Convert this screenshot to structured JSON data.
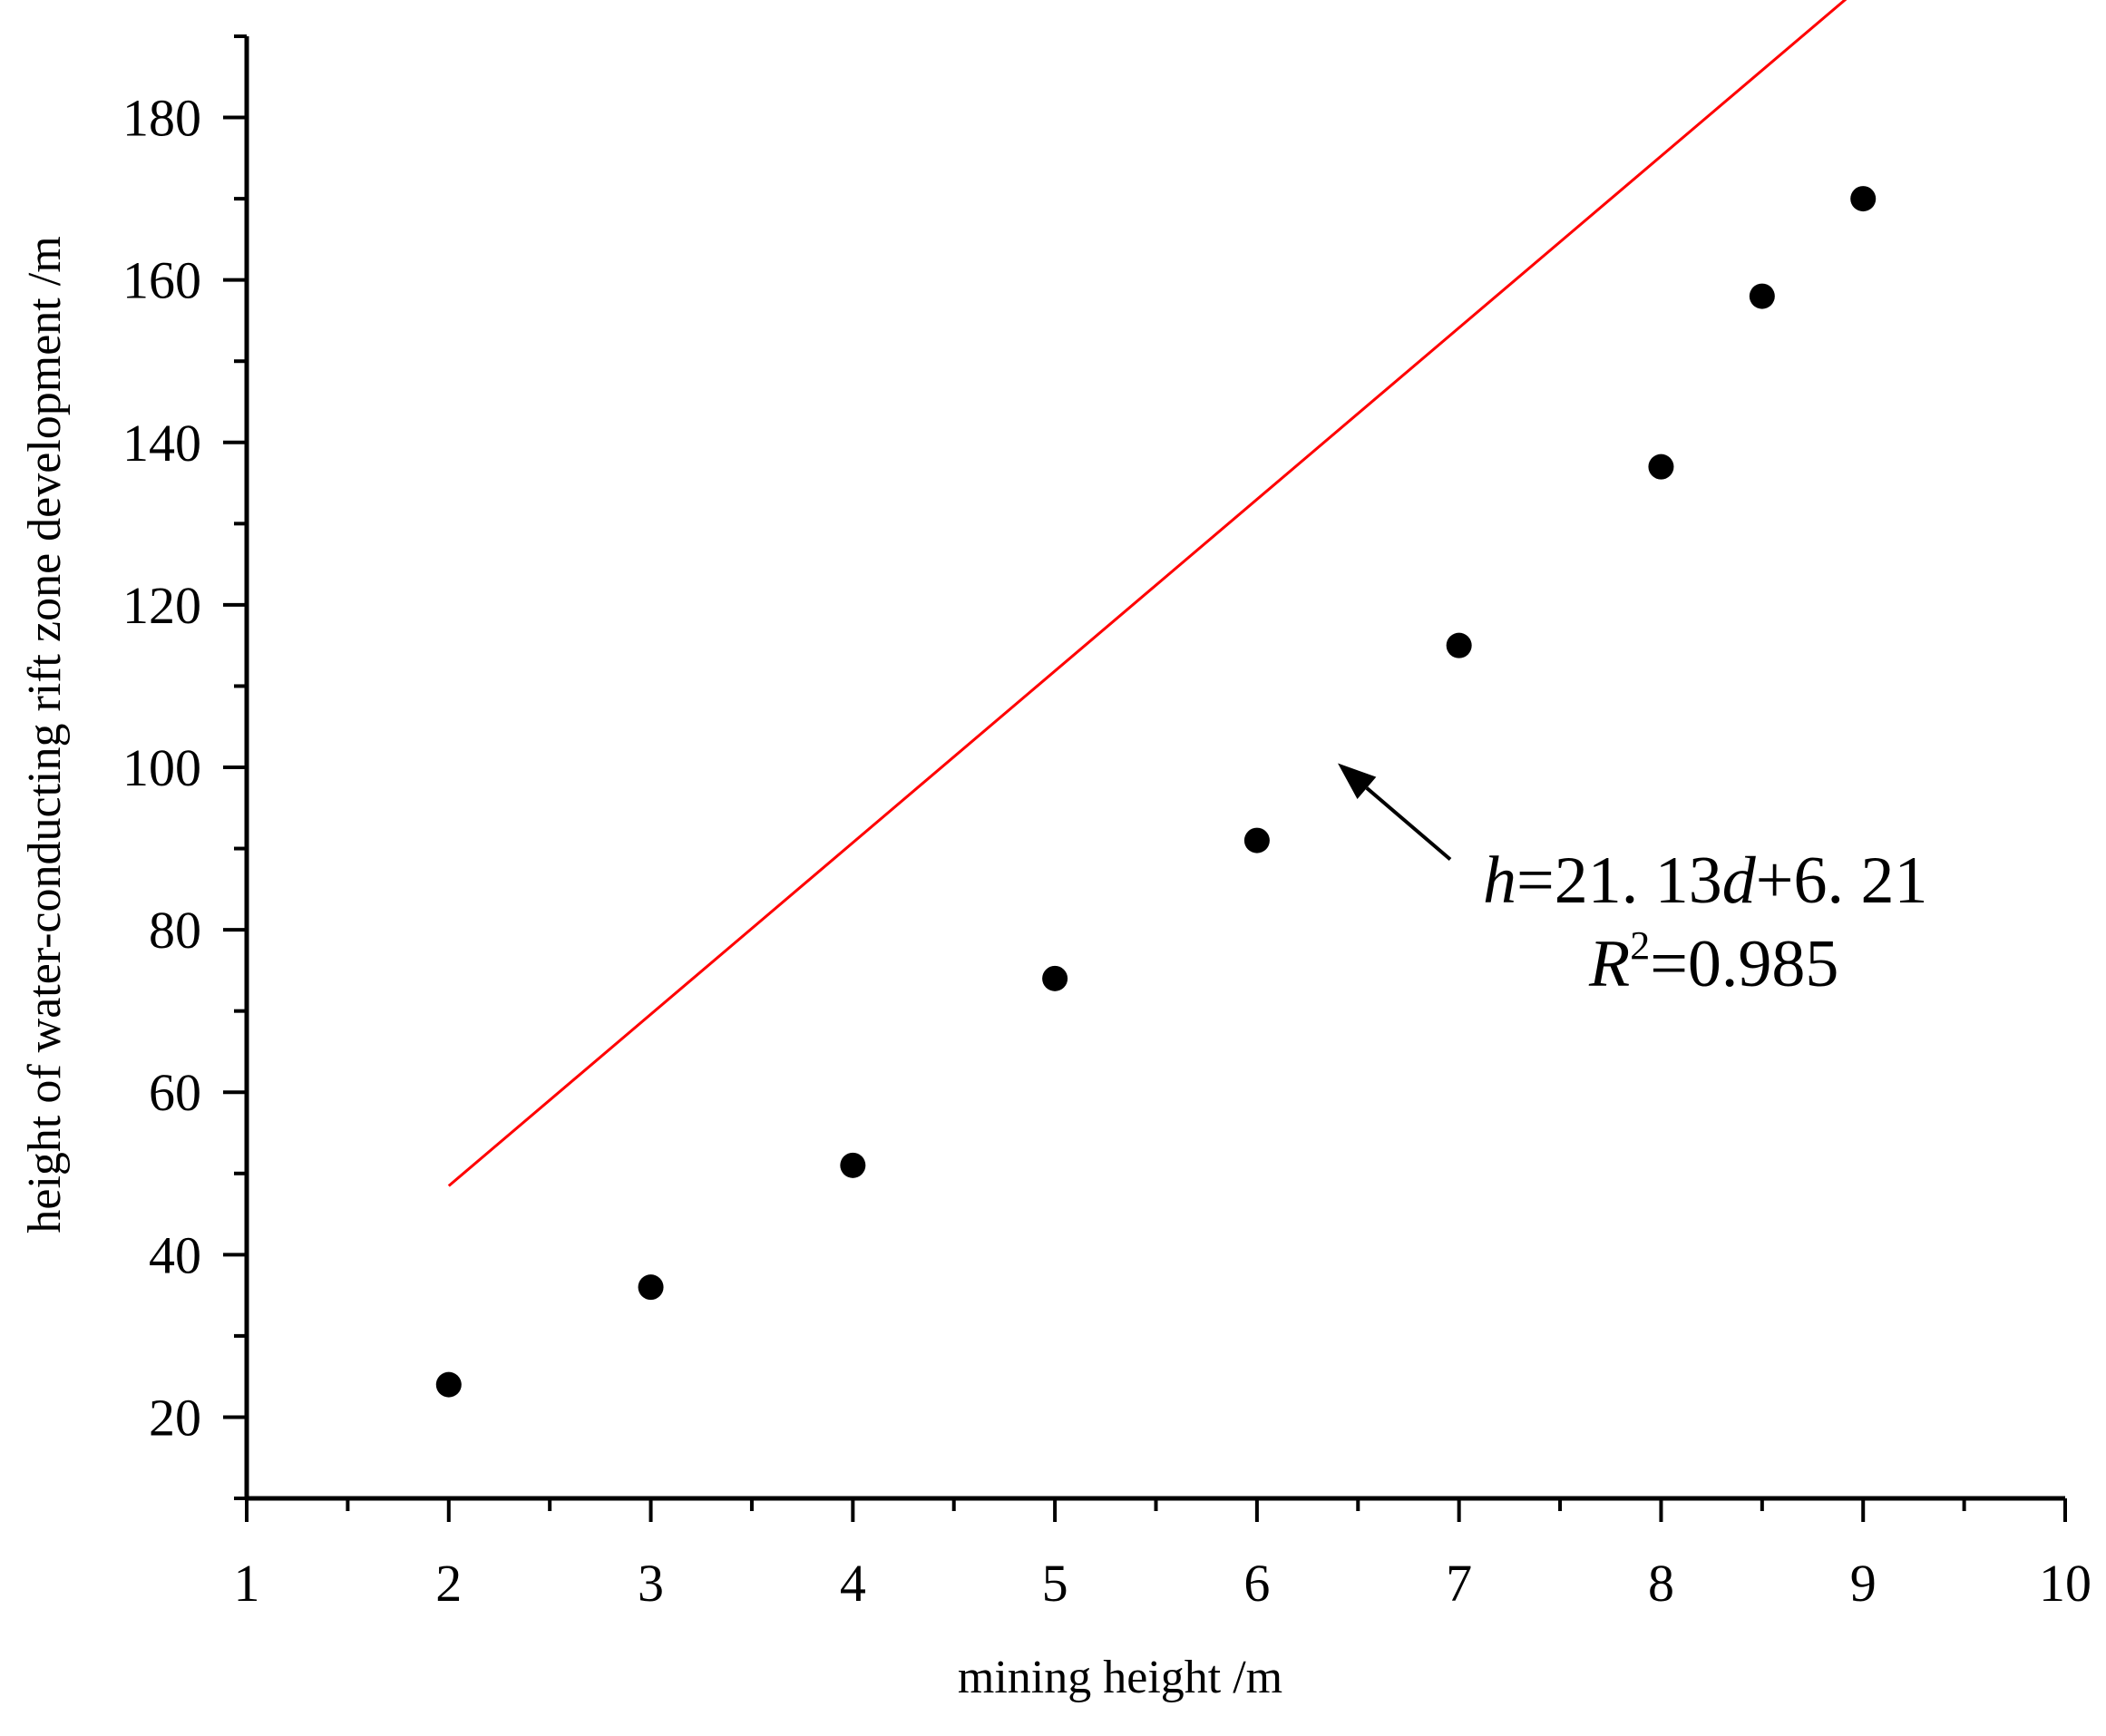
{
  "chart_data": {
    "type": "scatter",
    "title": "",
    "xlabel": "mining height /m",
    "ylabel": "height of water-conducting rift zone development /m",
    "xlim": [
      1,
      10
    ],
    "ylim": [
      10,
      190
    ],
    "x_ticks": [
      1,
      2,
      3,
      4,
      5,
      6,
      7,
      8,
      9,
      10
    ],
    "y_ticks": [
      20,
      40,
      60,
      80,
      100,
      120,
      140,
      160,
      180
    ],
    "grid": false,
    "series": [
      {
        "type": "scatter",
        "color": "#000000",
        "x": [
          2,
          3,
          4,
          5,
          6,
          7,
          8,
          8.5,
          9
        ],
        "y": [
          24,
          36,
          51,
          74,
          91,
          115,
          137,
          158,
          170
        ]
      }
    ],
    "fit_line": {
      "color": "#ff0000",
      "slope": 21.13,
      "intercept": 6.21,
      "x_range": [
        2,
        9
      ]
    },
    "annotation": {
      "equation": {
        "var_h": "h",
        "part1": "=21. 13",
        "var_d": "d",
        "part2": "+6. 21"
      },
      "r2": {
        "var_r": "R",
        "sup": "2",
        "value": "=0.985"
      },
      "arrow_target": [
        6.4,
        100.5
      ]
    }
  }
}
